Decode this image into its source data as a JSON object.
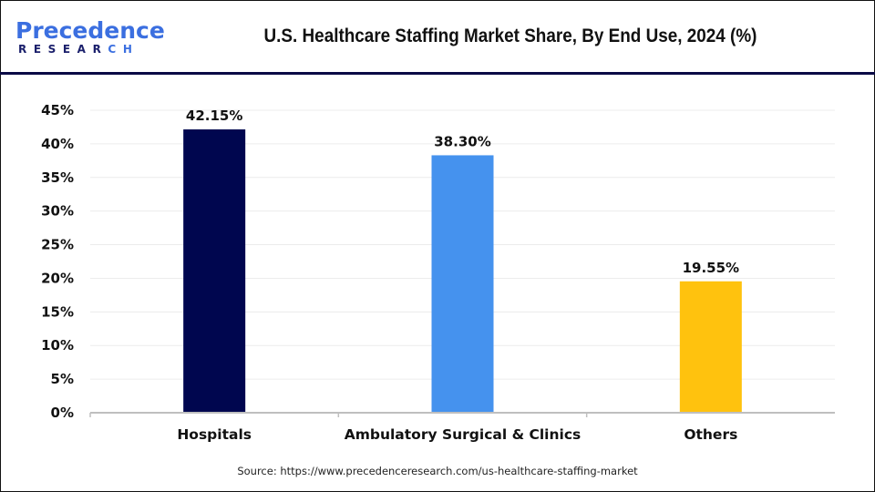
{
  "header": {
    "logo_top_prefix": "P",
    "logo_top_main": "recedence",
    "logo_bottom_main": "RESEAR",
    "logo_bottom_accent": "CH",
    "title": "U.S. Healthcare Staffing Market Share, By End Use, 2024 (%)"
  },
  "colors": {
    "hospitals": "#00064f",
    "ambulatory": "#4592ee",
    "others": "#ffc20e",
    "axis": "#bfbfbf",
    "grid": "#ececec"
  },
  "chart_data": {
    "type": "bar",
    "title": "U.S. Healthcare Staffing Market Share, By End Use, 2024 (%)",
    "xlabel": "",
    "ylabel": "",
    "categories": [
      "Hospitals",
      "Ambulatory Surgical & Clinics",
      "Others"
    ],
    "values": [
      42.15,
      38.3,
      19.55
    ],
    "data_labels": [
      "42.15%",
      "38.30%",
      "19.55%"
    ],
    "ylim": [
      0,
      45
    ],
    "yticks": [
      0,
      5,
      10,
      15,
      20,
      25,
      30,
      35,
      40,
      45
    ],
    "ytick_labels": [
      "0%",
      "5%",
      "10%",
      "15%",
      "20%",
      "25%",
      "30%",
      "35%",
      "40%",
      "45%"
    ],
    "grid": true,
    "legend": "none"
  },
  "footer": {
    "source": "Source: https://www.precedenceresearch.com/us-healthcare-staffing-market"
  }
}
